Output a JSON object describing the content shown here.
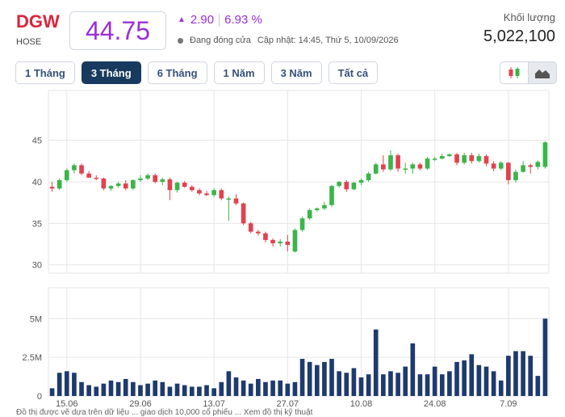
{
  "header": {
    "ticker": "DGW",
    "exchange": "HOSE",
    "price": "44.75",
    "change": "2.90",
    "change_pct": "6.93 %",
    "status": "Đang đóng cửa",
    "updated": "Cập nhật: 14:45, Thứ 5, 10/09/2026",
    "volume_label": "Khối lượng",
    "volume_value": "5,022,100"
  },
  "colors": {
    "up": "#3cb44a",
    "down": "#e0424f",
    "volume": "#1e3a6e",
    "price": "#9b2fd6",
    "ticker": "#d9263a"
  },
  "tabs": [
    {
      "label": "1 Tháng",
      "active": false
    },
    {
      "label": "3 Tháng",
      "active": true
    },
    {
      "label": "6 Tháng",
      "active": false
    },
    {
      "label": "1 Năm",
      "active": false
    },
    {
      "label": "3 Năm",
      "active": false
    },
    {
      "label": "Tất cả",
      "active": false
    }
  ],
  "chart_toggle": {
    "candles_icon": "candlestick-icon",
    "area_icon": "area-chart-icon"
  },
  "footer": "Đồ thị được vẽ dựa trên dữ liệu ... giao dịch 10,000 cổ phiếu ... Xem đồ thị kỹ thuật",
  "chart_data": [
    {
      "type": "candlestick",
      "y_ticks": [
        "45",
        "40",
        "35",
        "30"
      ],
      "y_tick_values": [
        45,
        40,
        35,
        30
      ],
      "ylim": [
        29,
        51
      ],
      "candles": [
        [
          39.4,
          40.0,
          38.8,
          39.2
        ],
        [
          39.2,
          40.4,
          39.0,
          40.2
        ],
        [
          40.2,
          41.6,
          40.0,
          41.4
        ],
        [
          41.4,
          42.2,
          41.0,
          42.0
        ],
        [
          42.0,
          42.2,
          40.8,
          41.0
        ],
        [
          41.0,
          41.3,
          40.5,
          40.5
        ],
        [
          40.5,
          40.8,
          40.2,
          40.4
        ],
        [
          40.4,
          40.5,
          39.0,
          39.2
        ],
        [
          39.2,
          39.6,
          38.9,
          39.5
        ],
        [
          39.5,
          40.0,
          39.3,
          39.8
        ],
        [
          39.8,
          40.2,
          39.0,
          39.2
        ],
        [
          39.2,
          40.3,
          39.0,
          40.2
        ],
        [
          40.2,
          40.8,
          40.0,
          40.4
        ],
        [
          40.4,
          41.0,
          40.2,
          40.8
        ],
        [
          40.8,
          41.0,
          39.8,
          40.0
        ],
        [
          40.0,
          40.5,
          39.6,
          40.3
        ],
        [
          40.3,
          40.5,
          37.8,
          39.0
        ],
        [
          39.0,
          40.0,
          38.7,
          39.9
        ],
        [
          39.9,
          40.1,
          39.3,
          39.4
        ],
        [
          39.4,
          39.6,
          38.8,
          39.0
        ],
        [
          39.0,
          39.2,
          38.4,
          38.6
        ],
        [
          38.6,
          38.9,
          38.3,
          38.4
        ],
        [
          38.4,
          39.2,
          38.2,
          39.0
        ],
        [
          39.0,
          39.2,
          37.8,
          38.0
        ],
        [
          38.0,
          38.2,
          35.3,
          38.0
        ],
        [
          38.0,
          38.5,
          37.2,
          37.4
        ],
        [
          37.4,
          37.5,
          34.8,
          35.0
        ],
        [
          35.0,
          35.2,
          33.8,
          34.0
        ],
        [
          34.0,
          34.2,
          33.5,
          33.8
        ],
        [
          33.8,
          34.0,
          32.7,
          33.0
        ],
        [
          33.0,
          33.2,
          32.2,
          32.6
        ],
        [
          32.6,
          33.1,
          32.2,
          32.8
        ],
        [
          32.8,
          33.6,
          31.6,
          32.4
        ],
        [
          31.6,
          34.4,
          31.5,
          34.2
        ],
        [
          34.2,
          35.8,
          34.0,
          35.6
        ],
        [
          35.6,
          36.8,
          35.4,
          36.6
        ],
        [
          36.6,
          36.9,
          36.4,
          36.8
        ],
        [
          36.8,
          37.6,
          36.6,
          37.2
        ],
        [
          37.2,
          39.6,
          37.0,
          39.5
        ],
        [
          39.5,
          40.1,
          39.3,
          40.0
        ],
        [
          40.0,
          40.2,
          38.8,
          39.1
        ],
        [
          39.1,
          40.0,
          39.0,
          39.9
        ],
        [
          39.9,
          40.4,
          39.6,
          40.2
        ],
        [
          40.2,
          41.2,
          40.0,
          41.0
        ],
        [
          41.0,
          42.3,
          40.9,
          42.1
        ],
        [
          42.1,
          43.2,
          41.2,
          41.5
        ],
        [
          41.5,
          43.8,
          41.3,
          43.2
        ],
        [
          43.2,
          43.4,
          41.2,
          41.6
        ],
        [
          41.6,
          42.3,
          41.0,
          41.6
        ],
        [
          41.6,
          42.3,
          41.0,
          42.1
        ],
        [
          42.1,
          42.3,
          41.4,
          41.6
        ],
        [
          41.6,
          43.0,
          41.4,
          42.8
        ],
        [
          42.8,
          43.0,
          42.5,
          42.8
        ],
        [
          42.8,
          43.4,
          42.7,
          43.1
        ],
        [
          43.1,
          43.4,
          43.0,
          43.3
        ],
        [
          43.3,
          43.5,
          42.0,
          42.3
        ],
        [
          42.3,
          43.5,
          42.1,
          43.2
        ],
        [
          43.2,
          43.5,
          42.2,
          42.5
        ],
        [
          42.5,
          43.4,
          42.3,
          43.1
        ],
        [
          43.1,
          43.3,
          41.9,
          42.2
        ],
        [
          42.2,
          42.5,
          41.3,
          41.6
        ],
        [
          41.6,
          42.5,
          41.4,
          42.3
        ],
        [
          42.3,
          42.4,
          39.7,
          40.2
        ],
        [
          40.2,
          41.5,
          39.9,
          41.2
        ],
        [
          41.2,
          42.5,
          41.1,
          42.0
        ],
        [
          42.0,
          42.2,
          41.0,
          41.8
        ],
        [
          41.8,
          42.6,
          41.5,
          42.4
        ],
        [
          41.8,
          44.9,
          41.6,
          44.75
        ]
      ]
    },
    {
      "type": "bar",
      "y_ticks": [
        "5M",
        "2.5M",
        "0"
      ],
      "y_tick_values": [
        5,
        2.5,
        0
      ],
      "ylim": [
        0,
        7
      ],
      "unit": "M",
      "x_ticks": [
        "15.06",
        "29.06",
        "13.07",
        "27.07",
        "10.08",
        "24.08",
        "7.09"
      ],
      "x_tick_index": [
        2,
        12,
        22,
        32,
        42,
        52,
        62
      ],
      "values": [
        0.5,
        1.5,
        1.6,
        1.5,
        0.9,
        0.7,
        0.6,
        0.8,
        1.0,
        0.9,
        1.1,
        0.9,
        0.7,
        0.8,
        1.0,
        0.9,
        0.6,
        0.8,
        0.7,
        0.6,
        0.6,
        0.7,
        0.5,
        0.9,
        1.6,
        1.2,
        1.0,
        0.8,
        1.1,
        0.9,
        1.0,
        1.0,
        0.8,
        0.9,
        2.4,
        2.2,
        2.0,
        2.2,
        2.4,
        1.6,
        1.5,
        1.8,
        1.2,
        1.4,
        4.3,
        1.4,
        1.6,
        1.5,
        1.9,
        3.4,
        1.4,
        1.4,
        1.9,
        1.4,
        1.6,
        2.2,
        2.3,
        2.7,
        2.0,
        1.9,
        1.6,
        1.0,
        2.6,
        2.9,
        2.9,
        2.6,
        1.3,
        5.0
      ]
    }
  ]
}
